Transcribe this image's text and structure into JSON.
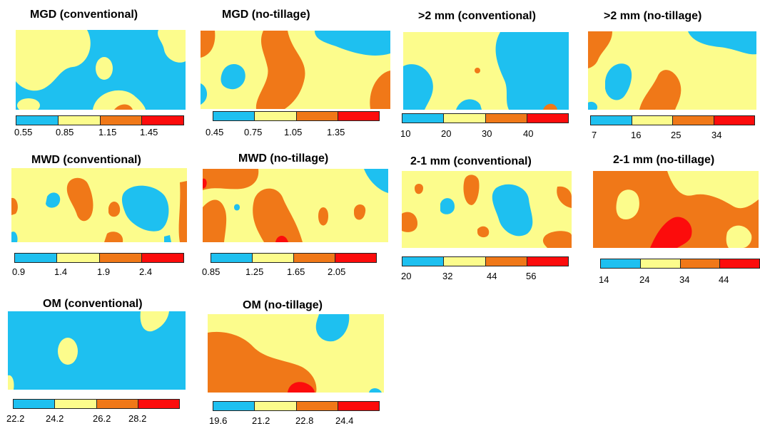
{
  "colors": {
    "low": "#1ec0f0",
    "mid_low": "#fcfc8c",
    "mid_high": "#f07818",
    "high": "#fc0c0c"
  },
  "panels": [
    {
      "id": "mgd-conventional",
      "title": "MGD (conventional)",
      "ticks": [
        "0.55",
        "0.85",
        "1.15",
        "1.45"
      ]
    },
    {
      "id": "mgd-no-tillage",
      "title": "MGD (no-tillage)",
      "ticks": [
        "0.45",
        "0.75",
        "1.05",
        "1.35"
      ]
    },
    {
      "id": "gt2mm-conventional",
      "title": ">2 mm (conventional)",
      "ticks": [
        "10",
        "20",
        "30",
        "40"
      ]
    },
    {
      "id": "gt2mm-no-tillage",
      "title": ">2 mm (no-tillage)",
      "ticks": [
        "7",
        "16",
        "25",
        "34"
      ]
    },
    {
      "id": "mwd-conventional",
      "title": "MWD (conventional)",
      "ticks": [
        "0.9",
        "1.4",
        "1.9",
        "2.4"
      ]
    },
    {
      "id": "mwd-no-tillage",
      "title": "MWD (no-tillage)",
      "ticks": [
        "0.85",
        "1.25",
        "1.65",
        "2.05"
      ]
    },
    {
      "id": "2-1mm-conventional",
      "title": "2-1 mm (conventional)",
      "ticks": [
        "20",
        "32",
        "44",
        "56"
      ]
    },
    {
      "id": "2-1mm-no-tillage",
      "title": "2-1 mm (no-tillage)",
      "ticks": [
        "14",
        "24",
        "34",
        "44"
      ]
    },
    {
      "id": "om-conventional",
      "title": "OM (conventional)",
      "ticks": [
        "22.2",
        "24.2",
        "26.2",
        "28.2"
      ]
    },
    {
      "id": "om-no-tillage",
      "title": "OM (no-tillage)",
      "ticks": [
        "19.6",
        "21.2",
        "22.8",
        "24.4"
      ]
    }
  ]
}
